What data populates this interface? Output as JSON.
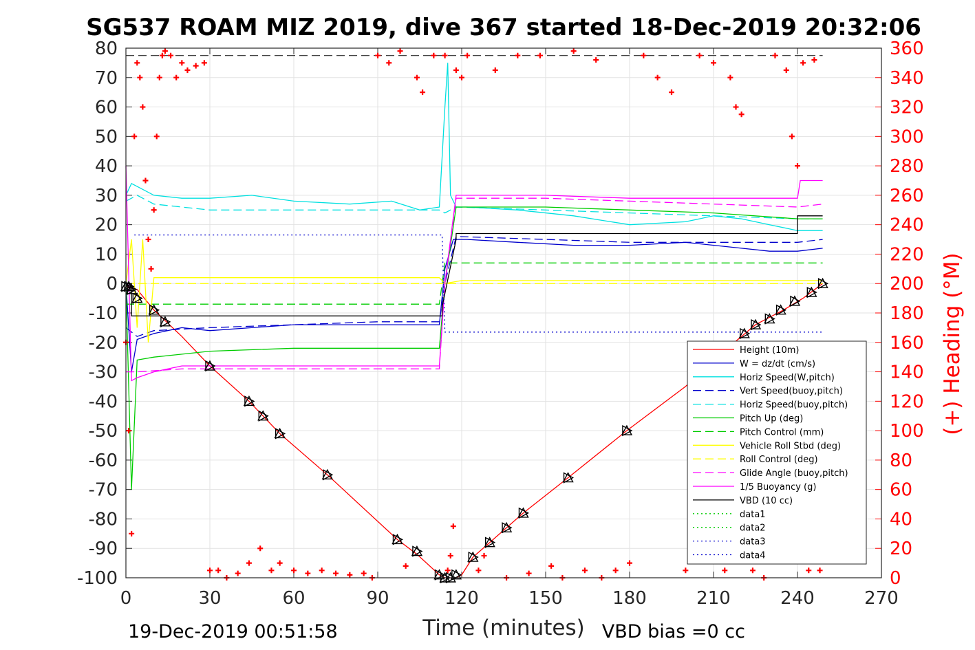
{
  "chart_data": {
    "type": "line",
    "title": "SG537 ROAM MIZ 2019, dive 367 started 18-Dec-2019 20:32:06",
    "xlabel": "Time (minutes)",
    "ylabel_right": "(+) Heading (°M)",
    "xlim": [
      0,
      270
    ],
    "ylim_left": [
      -100,
      80
    ],
    "ylim_right": [
      0,
      360
    ],
    "x_ticks": [
      "0",
      "30",
      "60",
      "90",
      "120",
      "150",
      "180",
      "210",
      "240",
      "270"
    ],
    "y_ticks_left": [
      "80",
      "70",
      "60",
      "50",
      "40",
      "30",
      "20",
      "10",
      "0",
      "-10",
      "-20",
      "-30",
      "-40",
      "-50",
      "-60",
      "-70",
      "-80",
      "-90",
      "-100"
    ],
    "y_ticks_right": [
      "360",
      "340",
      "320",
      "300",
      "280",
      "260",
      "240",
      "220",
      "200",
      "180",
      "160",
      "140",
      "120",
      "100",
      "80",
      "60",
      "40",
      "20",
      "0"
    ],
    "grid": true,
    "legend_position": "bottom-right",
    "footer_left": "19-Dec-2019 00:51:58",
    "footer_right": "VBD bias =0 cc",
    "series": [
      {
        "name": "Height (10m)",
        "color": "#ff0000",
        "style": "solid",
        "x": [
          0,
          4,
          10,
          20,
          30,
          44,
          50,
          55,
          72,
          97,
          104,
          112,
          114,
          116,
          118,
          120,
          124,
          130,
          136,
          142,
          158,
          179,
          200,
          215,
          225,
          235,
          242,
          249
        ],
        "y": [
          -1,
          -2,
          -9,
          -18,
          -28,
          -40,
          -46,
          -51,
          -65,
          -87,
          -92,
          -99,
          -100,
          -100,
          -100,
          -99,
          -93,
          -88,
          -83,
          -78,
          -66,
          -50,
          -35,
          -22,
          -14,
          -9,
          -5,
          0
        ]
      },
      {
        "name": "W = dz/dt (cm/s)",
        "color": "#0000cc",
        "style": "solid",
        "x": [
          0,
          2,
          4,
          10,
          20,
          30,
          45,
          60,
          80,
          100,
          112,
          114,
          117,
          122,
          140,
          160,
          180,
          200,
          220,
          230,
          240,
          249
        ],
        "y": [
          0,
          -30,
          -19,
          -17,
          -15,
          -16,
          -15,
          -14,
          -14,
          -14,
          -14,
          5,
          15,
          15,
          14,
          13,
          13,
          14,
          12,
          11,
          11,
          12
        ]
      },
      {
        "name": "Horiz Speed(W,pitch)",
        "color": "#00e0e0",
        "style": "solid",
        "x": [
          0,
          2,
          4,
          10,
          20,
          30,
          45,
          60,
          80,
          95,
          105,
          112,
          114,
          115,
          116,
          118,
          122,
          140,
          160,
          180,
          200,
          210,
          220,
          230,
          240,
          249
        ],
        "y": [
          30,
          34,
          33,
          30,
          29,
          29,
          30,
          28,
          27,
          28,
          25,
          26,
          60,
          75,
          30,
          26,
          26,
          25,
          23,
          20,
          21,
          23,
          22,
          20,
          18,
          18
        ]
      },
      {
        "name": "Vert Speed(buoy,pitch)",
        "color": "#0000cc",
        "style": "dashed",
        "x": [
          0,
          4,
          10,
          30,
          60,
          90,
          112,
          114,
          118,
          150,
          180,
          210,
          240,
          249
        ],
        "y": [
          -15,
          -18,
          -16,
          -15,
          -14,
          -13,
          -13,
          0,
          16,
          15,
          14,
          14,
          14,
          15
        ]
      },
      {
        "name": "Horiz Speed(buoy,pitch)",
        "color": "#00e0e0",
        "style": "dashed",
        "x": [
          0,
          4,
          10,
          30,
          60,
          90,
          112,
          114,
          118,
          150,
          180,
          210,
          240,
          249
        ],
        "y": [
          28,
          30,
          27,
          25,
          25,
          25,
          25,
          24,
          26,
          25,
          24,
          23,
          22,
          22
        ]
      },
      {
        "name": "Pitch Up (deg)",
        "color": "#00cc00",
        "style": "solid",
        "x": [
          0,
          2,
          4,
          10,
          30,
          60,
          90,
          112,
          114,
          118,
          150,
          180,
          210,
          240,
          249
        ],
        "y": [
          0,
          -70,
          -26,
          -25,
          -23,
          -22,
          -22,
          -22,
          0,
          26,
          26,
          25,
          24,
          22,
          22
        ]
      },
      {
        "name": "Pitch Control (mm)",
        "color": "#00cc00",
        "style": "dashed",
        "x": [
          0,
          3,
          112,
          114,
          249
        ],
        "y": [
          -7,
          -7,
          -7,
          7,
          7
        ]
      },
      {
        "name": "Vehicle Roll Stbd (deg)",
        "color": "#ffff00",
        "style": "solid",
        "x": [
          0,
          2,
          4,
          6,
          8,
          10,
          30,
          60,
          90,
          112,
          114,
          120,
          150,
          180,
          210,
          230,
          240,
          249
        ],
        "y": [
          0,
          15,
          -15,
          15,
          -20,
          2,
          2,
          2,
          2,
          2,
          0,
          1,
          1,
          1,
          1,
          1,
          1,
          1
        ]
      },
      {
        "name": "Roll Control (deg)",
        "color": "#ffff00",
        "style": "dashed",
        "x": [
          0,
          249
        ],
        "y": [
          0,
          0
        ]
      },
      {
        "name": "Glide Angle (buoy,pitch)",
        "color": "#ff00ff",
        "style": "dashed",
        "x": [
          0,
          4,
          20,
          60,
          112,
          114,
          118,
          150,
          180,
          210,
          240,
          249
        ],
        "y": [
          -30,
          -30,
          -29,
          -29,
          -29,
          0,
          29,
          29,
          28,
          27,
          26,
          27
        ]
      },
      {
        "name": "1/5 Buoyancy (g)",
        "color": "#ff00ff",
        "style": "solid",
        "x": [
          0,
          2,
          4,
          10,
          20,
          30,
          60,
          112,
          114,
          118,
          150,
          180,
          210,
          240,
          241,
          249
        ],
        "y": [
          40,
          -33,
          -32,
          -30,
          -28,
          -28,
          -28,
          -28,
          0,
          30,
          30,
          29,
          29,
          29,
          35,
          35
        ]
      },
      {
        "name": "VBD (10 cc)",
        "color": "#000000",
        "style": "solid",
        "x": [
          0,
          2,
          2,
          113,
          113,
          118,
          118,
          240,
          240,
          249
        ],
        "y": [
          0,
          0,
          -11,
          -11,
          -8,
          15,
          17,
          17,
          23,
          23
        ]
      },
      {
        "name": "data1",
        "color": "#00cc00",
        "style": "dotted",
        "x": [],
        "y": []
      },
      {
        "name": "data2",
        "color": "#00cc00",
        "style": "dotted",
        "x": [],
        "y": []
      },
      {
        "name": "data3",
        "color": "#0000cc",
        "style": "dotted",
        "x": [
          3,
          113,
          114,
          249
        ],
        "y": [
          16.5,
          16.5,
          -16.5,
          -16.5
        ]
      },
      {
        "name": "data4",
        "color": "#0000cc",
        "style": "dotted",
        "x": [],
        "y": []
      }
    ],
    "reference_lines": [
      {
        "color": "#000000",
        "style": "dashed",
        "y": 77.5,
        "x": [
          0,
          249
        ]
      }
    ],
    "heading_points": {
      "color": "#ff0000",
      "marker": "+",
      "axis": "right",
      "x": [
        0,
        1,
        2,
        3,
        4,
        5,
        6,
        7,
        8,
        9,
        10,
        11,
        12,
        13,
        14,
        16,
        18,
        20,
        22,
        25,
        28,
        30,
        33,
        36,
        40,
        44,
        48,
        52,
        55,
        60,
        65,
        70,
        75,
        80,
        85,
        88,
        90,
        94,
        98,
        100,
        104,
        106,
        110,
        114,
        115,
        116,
        117,
        118,
        120,
        122,
        126,
        128,
        132,
        136,
        140,
        144,
        148,
        152,
        156,
        160,
        164,
        168,
        170,
        175,
        180,
        185,
        190,
        195,
        200,
        205,
        210,
        214,
        216,
        218,
        220,
        224,
        228,
        232,
        236,
        238,
        240,
        242,
        244,
        246,
        248
      ],
      "y": [
        160,
        100,
        30,
        300,
        350,
        340,
        320,
        270,
        230,
        210,
        250,
        300,
        340,
        355,
        358,
        355,
        340,
        350,
        345,
        348,
        350,
        5,
        5,
        0,
        3,
        10,
        20,
        5,
        10,
        5,
        3,
        5,
        3,
        2,
        3,
        0,
        355,
        350,
        358,
        8,
        340,
        330,
        355,
        355,
        5,
        15,
        35,
        345,
        340,
        355,
        5,
        15,
        345,
        0,
        355,
        3,
        355,
        8,
        0,
        358,
        5,
        352,
        0,
        5,
        10,
        355,
        340,
        330,
        5,
        355,
        350,
        5,
        340,
        320,
        315,
        5,
        0,
        355,
        345,
        300,
        280,
        350,
        5,
        352,
        5
      ]
    },
    "markers": {
      "color": "#000000",
      "x": [
        0,
        1,
        2,
        4,
        10,
        14,
        30,
        44,
        49,
        55,
        72,
        97,
        104,
        112,
        114,
        116,
        118,
        124,
        130,
        136,
        142,
        158,
        179,
        221,
        225,
        230,
        234,
        239,
        245,
        249
      ],
      "y": [
        -1,
        -1,
        -2,
        -5,
        -9,
        -13,
        -28,
        -40,
        -45,
        -51,
        -65,
        -87,
        -91,
        -99,
        -100,
        -100,
        -99,
        -93,
        -88,
        -83,
        -78,
        -66,
        -50,
        -17,
        -14,
        -12,
        -9,
        -6,
        -3,
        0
      ]
    }
  }
}
